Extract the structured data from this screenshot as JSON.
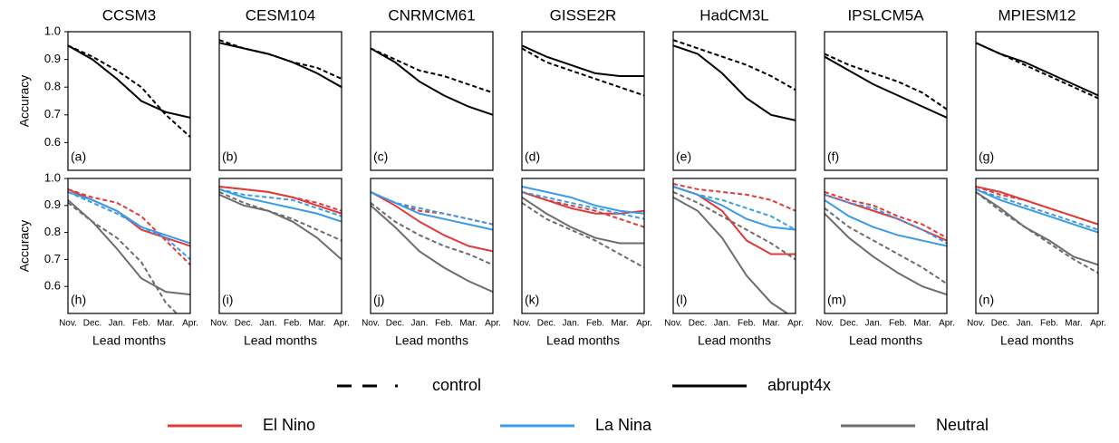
{
  "legend": [
    {
      "name": "control",
      "color": "#000000",
      "dash": "dashed"
    },
    {
      "name": "abrupt4x",
      "color": "#000000",
      "dash": "solid"
    },
    {
      "name": "El Nino",
      "color": "#e03a3a",
      "dash": "solid"
    },
    {
      "name": "La Nina",
      "color": "#3a9be8",
      "dash": "solid"
    },
    {
      "name": "Neutral",
      "color": "#6d6d6d",
      "dash": "solid"
    }
  ],
  "chart_data": [
    {
      "type": "line",
      "title": "CCSM3",
      "panel_label": "(a)",
      "ylabel": "Accuracy",
      "ylim": [
        0.5,
        1.0
      ],
      "yticks": [
        {
          "value": 1,
          "label": "1.0"
        },
        0.9,
        0.8,
        0.7,
        0.6
      ],
      "series": [
        {
          "name": "control",
          "color": "#000000",
          "dash": "dashed",
          "values": [
            0.95,
            0.91,
            0.86,
            0.8,
            0.7,
            0.62
          ]
        },
        {
          "name": "abrupt4x",
          "color": "#000000",
          "dash": "solid",
          "values": [
            0.95,
            0.9,
            0.83,
            0.75,
            0.71,
            0.69
          ]
        }
      ]
    },
    {
      "type": "line",
      "title": "CESM104",
      "panel_label": "(b)",
      "ylim": [
        0.5,
        1.0
      ],
      "series": [
        {
          "name": "control",
          "color": "#000000",
          "dash": "dashed",
          "values": [
            0.97,
            0.94,
            0.92,
            0.89,
            0.87,
            0.83
          ]
        },
        {
          "name": "abrupt4x",
          "color": "#000000",
          "dash": "solid",
          "values": [
            0.96,
            0.94,
            0.92,
            0.89,
            0.85,
            0.8
          ]
        }
      ]
    },
    {
      "type": "line",
      "title": "CNRMCM61",
      "panel_label": "(c)",
      "ylim": [
        0.5,
        1.0
      ],
      "series": [
        {
          "name": "control",
          "color": "#000000",
          "dash": "dashed",
          "values": [
            0.94,
            0.9,
            0.86,
            0.84,
            0.81,
            0.78
          ]
        },
        {
          "name": "abrupt4x",
          "color": "#000000",
          "dash": "solid",
          "values": [
            0.94,
            0.89,
            0.82,
            0.77,
            0.73,
            0.7
          ]
        }
      ]
    },
    {
      "type": "line",
      "title": "GISSE2R",
      "panel_label": "(d)",
      "ylim": [
        0.5,
        1.0
      ],
      "series": [
        {
          "name": "control",
          "color": "#000000",
          "dash": "dashed",
          "values": [
            0.94,
            0.89,
            0.86,
            0.83,
            0.8,
            0.77
          ]
        },
        {
          "name": "abrupt4x",
          "color": "#000000",
          "dash": "solid",
          "values": [
            0.95,
            0.91,
            0.88,
            0.85,
            0.84,
            0.84
          ]
        }
      ]
    },
    {
      "type": "line",
      "title": "HadCM3L",
      "panel_label": "(e)",
      "ylim": [
        0.5,
        1.0
      ],
      "series": [
        {
          "name": "control",
          "color": "#000000",
          "dash": "dashed",
          "values": [
            0.97,
            0.94,
            0.91,
            0.88,
            0.84,
            0.79
          ]
        },
        {
          "name": "abrupt4x",
          "color": "#000000",
          "dash": "solid",
          "values": [
            0.95,
            0.92,
            0.85,
            0.76,
            0.7,
            0.68
          ]
        }
      ]
    },
    {
      "type": "line",
      "title": "IPSLCM5A",
      "panel_label": "(f)",
      "ylim": [
        0.5,
        1.0
      ],
      "series": [
        {
          "name": "control",
          "color": "#000000",
          "dash": "dashed",
          "values": [
            0.92,
            0.88,
            0.85,
            0.82,
            0.78,
            0.72
          ]
        },
        {
          "name": "abrupt4x",
          "color": "#000000",
          "dash": "solid",
          "values": [
            0.91,
            0.86,
            0.81,
            0.77,
            0.73,
            0.69
          ]
        }
      ]
    },
    {
      "type": "line",
      "title": "MPIESM12",
      "panel_label": "(g)",
      "ylim": [
        0.5,
        1.0
      ],
      "series": [
        {
          "name": "control",
          "color": "#000000",
          "dash": "dashed",
          "values": [
            0.96,
            0.92,
            0.88,
            0.84,
            0.8,
            0.76
          ]
        },
        {
          "name": "abrupt4x",
          "color": "#000000",
          "dash": "solid",
          "values": [
            0.96,
            0.92,
            0.89,
            0.85,
            0.81,
            0.77
          ]
        }
      ]
    },
    {
      "type": "line",
      "panel_label": "(h)",
      "ylabel": "Accuracy",
      "xlabel": "Lead months",
      "ylim": [
        0.5,
        1.0
      ],
      "yticks": [
        {
          "value": 1,
          "label": "1.0"
        },
        0.9,
        0.8,
        0.7,
        0.6
      ],
      "categories": [
        "Nov.",
        "Dec.",
        "Jan.",
        "Feb.",
        "Mar.",
        "Apr."
      ],
      "series": [
        {
          "name": "El Nino",
          "color": "#e03a3a",
          "dash": "dashed",
          "values": [
            0.96,
            0.93,
            0.91,
            0.86,
            0.77,
            0.68
          ]
        },
        {
          "name": "El Nino",
          "color": "#e03a3a",
          "dash": "solid",
          "values": [
            0.96,
            0.92,
            0.88,
            0.81,
            0.78,
            0.75
          ]
        },
        {
          "name": "La Nina",
          "color": "#3a9be8",
          "dash": "dashed",
          "values": [
            0.95,
            0.91,
            0.87,
            0.82,
            0.78,
            0.7
          ]
        },
        {
          "name": "La Nina",
          "color": "#3a9be8",
          "dash": "solid",
          "values": [
            0.95,
            0.92,
            0.88,
            0.82,
            0.79,
            0.76
          ]
        },
        {
          "name": "Neutral",
          "color": "#6d6d6d",
          "dash": "dashed",
          "values": [
            0.91,
            0.84,
            0.78,
            0.69,
            0.54,
            0.45
          ]
        },
        {
          "name": "Neutral",
          "color": "#6d6d6d",
          "dash": "solid",
          "values": [
            0.92,
            0.84,
            0.74,
            0.63,
            0.58,
            0.57
          ]
        }
      ]
    },
    {
      "type": "line",
      "panel_label": "(i)",
      "xlabel": "Lead months",
      "ylim": [
        0.5,
        1.0
      ],
      "categories": [
        "Nov.",
        "Dec.",
        "Jan.",
        "Feb.",
        "Mar.",
        "Apr."
      ],
      "series": [
        {
          "name": "El Nino",
          "color": "#e03a3a",
          "dash": "dashed",
          "values": [
            0.97,
            0.96,
            0.95,
            0.93,
            0.91,
            0.88
          ]
        },
        {
          "name": "El Nino",
          "color": "#e03a3a",
          "dash": "solid",
          "values": [
            0.97,
            0.96,
            0.95,
            0.93,
            0.9,
            0.87
          ]
        },
        {
          "name": "La Nina",
          "color": "#3a9be8",
          "dash": "dashed",
          "values": [
            0.96,
            0.94,
            0.93,
            0.92,
            0.89,
            0.86
          ]
        },
        {
          "name": "La Nina",
          "color": "#3a9be8",
          "dash": "solid",
          "values": [
            0.96,
            0.93,
            0.91,
            0.89,
            0.87,
            0.84
          ]
        },
        {
          "name": "Neutral",
          "color": "#6d6d6d",
          "dash": "dashed",
          "values": [
            0.95,
            0.91,
            0.88,
            0.85,
            0.81,
            0.77
          ]
        },
        {
          "name": "Neutral",
          "color": "#6d6d6d",
          "dash": "solid",
          "values": [
            0.94,
            0.9,
            0.88,
            0.84,
            0.78,
            0.7
          ]
        }
      ]
    },
    {
      "type": "line",
      "panel_label": "(j)",
      "xlabel": "Lead months",
      "ylim": [
        0.5,
        1.0
      ],
      "categories": [
        "Nov.",
        "Dec.",
        "Jan.",
        "Feb.",
        "Mar.",
        "Apr."
      ],
      "series": [
        {
          "name": "El Nino",
          "color": "#e03a3a",
          "dash": "dashed",
          "values": [
            0.95,
            0.91,
            0.88,
            0.87,
            0.85,
            0.83
          ]
        },
        {
          "name": "El Nino",
          "color": "#e03a3a",
          "dash": "solid",
          "values": [
            0.95,
            0.9,
            0.84,
            0.79,
            0.75,
            0.73
          ]
        },
        {
          "name": "La Nina",
          "color": "#3a9be8",
          "dash": "dashed",
          "values": [
            0.95,
            0.91,
            0.89,
            0.87,
            0.85,
            0.83
          ]
        },
        {
          "name": "La Nina",
          "color": "#3a9be8",
          "dash": "solid",
          "values": [
            0.95,
            0.91,
            0.87,
            0.85,
            0.83,
            0.81
          ]
        },
        {
          "name": "Neutral",
          "color": "#6d6d6d",
          "dash": "dashed",
          "values": [
            0.91,
            0.84,
            0.79,
            0.75,
            0.72,
            0.68
          ]
        },
        {
          "name": "Neutral",
          "color": "#6d6d6d",
          "dash": "solid",
          "values": [
            0.9,
            0.82,
            0.73,
            0.67,
            0.62,
            0.58
          ]
        }
      ]
    },
    {
      "type": "line",
      "panel_label": "(k)",
      "xlabel": "Lead months",
      "ylim": [
        0.5,
        1.0
      ],
      "categories": [
        "Nov.",
        "Dec.",
        "Jan.",
        "Feb.",
        "Mar.",
        "Apr."
      ],
      "series": [
        {
          "name": "El Nino",
          "color": "#e03a3a",
          "dash": "dashed",
          "values": [
            0.95,
            0.92,
            0.9,
            0.88,
            0.85,
            0.82
          ]
        },
        {
          "name": "El Nino",
          "color": "#e03a3a",
          "dash": "solid",
          "values": [
            0.95,
            0.92,
            0.89,
            0.87,
            0.87,
            0.88
          ]
        },
        {
          "name": "La Nina",
          "color": "#3a9be8",
          "dash": "dashed",
          "values": [
            0.95,
            0.93,
            0.91,
            0.89,
            0.87,
            0.85
          ]
        },
        {
          "name": "La Nina",
          "color": "#3a9be8",
          "dash": "solid",
          "values": [
            0.97,
            0.95,
            0.93,
            0.9,
            0.88,
            0.87
          ]
        },
        {
          "name": "Neutral",
          "color": "#6d6d6d",
          "dash": "dashed",
          "values": [
            0.91,
            0.85,
            0.81,
            0.77,
            0.72,
            0.67
          ]
        },
        {
          "name": "Neutral",
          "color": "#6d6d6d",
          "dash": "solid",
          "values": [
            0.93,
            0.87,
            0.82,
            0.78,
            0.76,
            0.76
          ]
        }
      ]
    },
    {
      "type": "line",
      "panel_label": "(l)",
      "xlabel": "Lead months",
      "ylim": [
        0.5,
        1.0
      ],
      "categories": [
        "Nov.",
        "Dec.",
        "Jan.",
        "Feb.",
        "Mar.",
        "Apr."
      ],
      "series": [
        {
          "name": "El Nino",
          "color": "#e03a3a",
          "dash": "dashed",
          "values": [
            0.98,
            0.96,
            0.95,
            0.94,
            0.92,
            0.88
          ]
        },
        {
          "name": "El Nino",
          "color": "#e03a3a",
          "dash": "solid",
          "values": [
            0.97,
            0.94,
            0.88,
            0.77,
            0.72,
            0.72
          ]
        },
        {
          "name": "La Nina",
          "color": "#3a9be8",
          "dash": "dashed",
          "values": [
            0.97,
            0.94,
            0.92,
            0.89,
            0.86,
            0.81
          ]
        },
        {
          "name": "La Nina",
          "color": "#3a9be8",
          "dash": "solid",
          "values": [
            0.97,
            0.94,
            0.9,
            0.85,
            0.82,
            0.81
          ]
        },
        {
          "name": "Neutral",
          "color": "#6d6d6d",
          "dash": "dashed",
          "values": [
            0.95,
            0.91,
            0.86,
            0.81,
            0.76,
            0.7
          ]
        },
        {
          "name": "Neutral",
          "color": "#6d6d6d",
          "dash": "solid",
          "values": [
            0.93,
            0.88,
            0.78,
            0.64,
            0.54,
            0.48
          ]
        }
      ]
    },
    {
      "type": "line",
      "panel_label": "(m)",
      "xlabel": "Lead months",
      "ylim": [
        0.5,
        1.0
      ],
      "categories": [
        "Nov.",
        "Dec.",
        "Jan.",
        "Feb.",
        "Mar.",
        "Apr."
      ],
      "series": [
        {
          "name": "El Nino",
          "color": "#e03a3a",
          "dash": "dashed",
          "values": [
            0.95,
            0.92,
            0.9,
            0.86,
            0.83,
            0.78
          ]
        },
        {
          "name": "El Nino",
          "color": "#e03a3a",
          "dash": "solid",
          "values": [
            0.94,
            0.91,
            0.88,
            0.85,
            0.81,
            0.77
          ]
        },
        {
          "name": "La Nina",
          "color": "#3a9be8",
          "dash": "dashed",
          "values": [
            0.94,
            0.91,
            0.89,
            0.85,
            0.81,
            0.76
          ]
        },
        {
          "name": "La Nina",
          "color": "#3a9be8",
          "dash": "solid",
          "values": [
            0.92,
            0.86,
            0.82,
            0.79,
            0.77,
            0.75
          ]
        },
        {
          "name": "Neutral",
          "color": "#6d6d6d",
          "dash": "dashed",
          "values": [
            0.89,
            0.82,
            0.77,
            0.72,
            0.67,
            0.61
          ]
        },
        {
          "name": "Neutral",
          "color": "#6d6d6d",
          "dash": "solid",
          "values": [
            0.87,
            0.78,
            0.71,
            0.65,
            0.6,
            0.57
          ]
        }
      ]
    },
    {
      "type": "line",
      "panel_label": "(n)",
      "xlabel": "Lead months",
      "ylim": [
        0.5,
        1.0
      ],
      "categories": [
        "Nov.",
        "Dec.",
        "Jan.",
        "Feb.",
        "Mar.",
        "Apr."
      ],
      "series": [
        {
          "name": "El Nino",
          "color": "#e03a3a",
          "dash": "dashed",
          "values": [
            0.97,
            0.94,
            0.92,
            0.89,
            0.86,
            0.83
          ]
        },
        {
          "name": "El Nino",
          "color": "#e03a3a",
          "dash": "solid",
          "values": [
            0.97,
            0.95,
            0.92,
            0.89,
            0.86,
            0.83
          ]
        },
        {
          "name": "La Nina",
          "color": "#3a9be8",
          "dash": "dashed",
          "values": [
            0.96,
            0.93,
            0.9,
            0.87,
            0.84,
            0.81
          ]
        },
        {
          "name": "La Nina",
          "color": "#3a9be8",
          "dash": "solid",
          "values": [
            0.96,
            0.92,
            0.89,
            0.86,
            0.83,
            0.8
          ]
        },
        {
          "name": "Neutral",
          "color": "#6d6d6d",
          "dash": "dashed",
          "values": [
            0.95,
            0.88,
            0.82,
            0.76,
            0.7,
            0.65
          ]
        },
        {
          "name": "Neutral",
          "color": "#6d6d6d",
          "dash": "solid",
          "values": [
            0.95,
            0.89,
            0.82,
            0.77,
            0.71,
            0.68
          ]
        }
      ]
    }
  ]
}
